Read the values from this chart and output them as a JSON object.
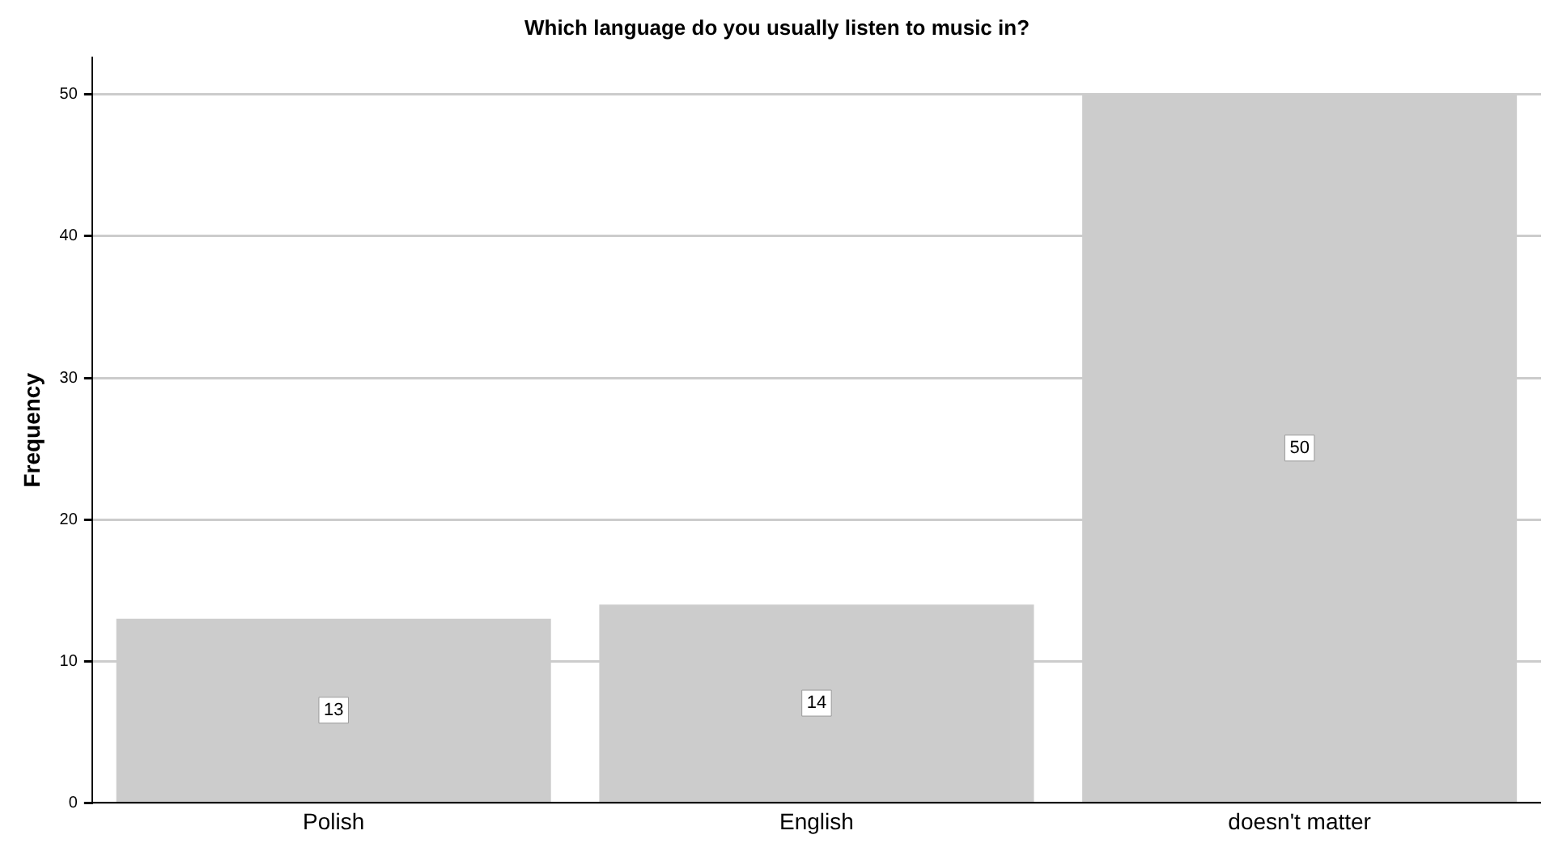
{
  "chart_data": {
    "type": "bar",
    "title": "Which language do you usually listen to music in?",
    "ylabel": "Frequency",
    "categories": [
      "Polish",
      "English",
      "doesn't matter"
    ],
    "values": [
      13,
      14,
      50
    ],
    "color": "#cccccc",
    "ylim": [
      0,
      52.6
    ],
    "yticks": [
      0,
      10,
      20,
      30,
      40,
      50
    ],
    "grid": "y",
    "data_labels": true,
    "legend": false
  }
}
